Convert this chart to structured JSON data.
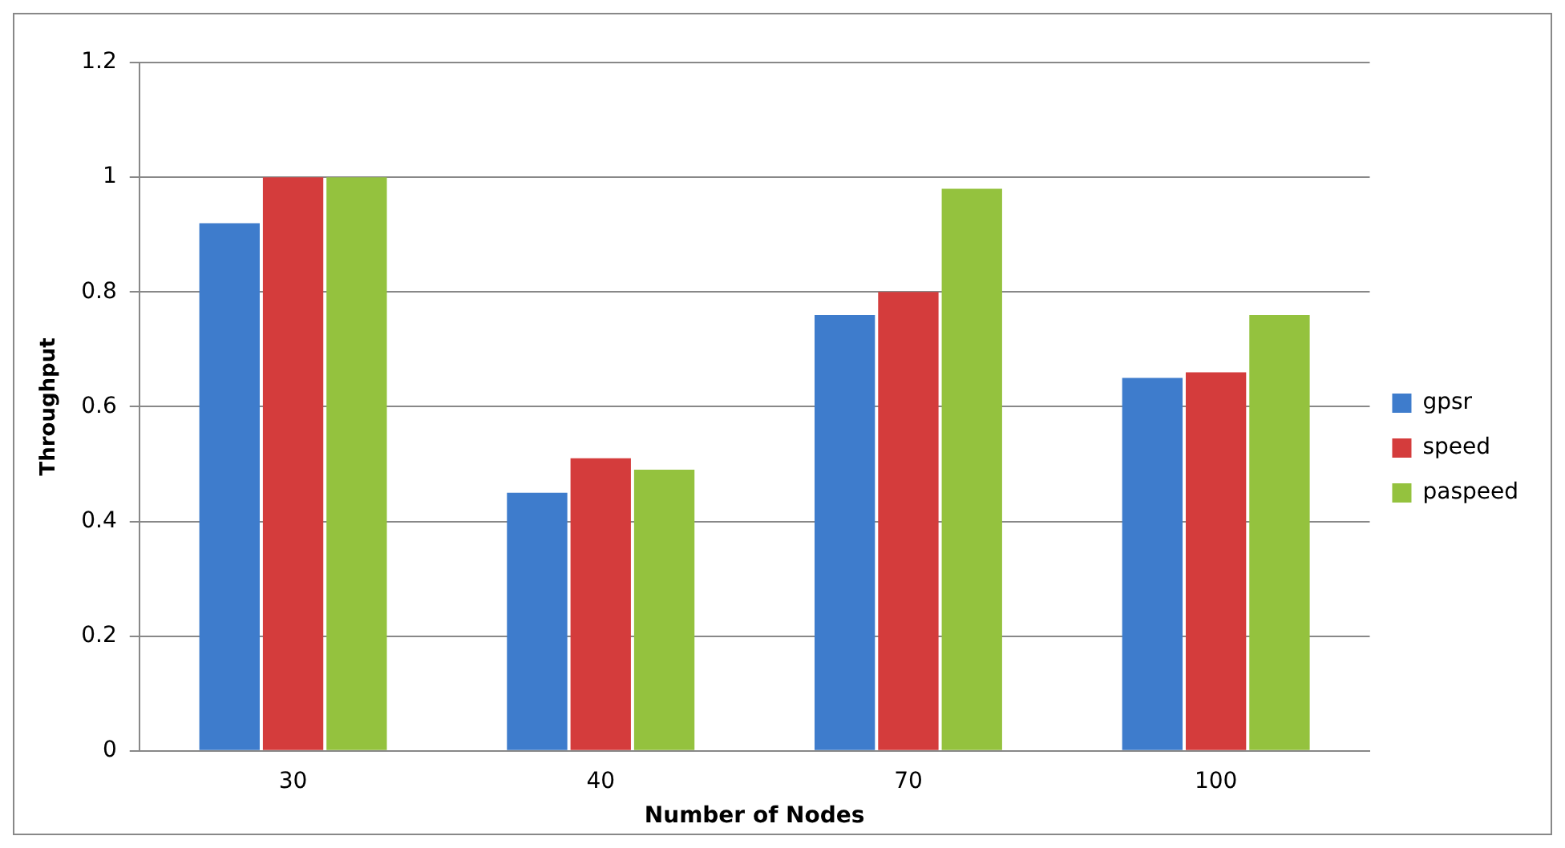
{
  "chart_data": {
    "type": "bar",
    "xlabel": "Number of Nodes",
    "ylabel": "Throughput",
    "categories": [
      "30",
      "40",
      "70",
      "100"
    ],
    "series": [
      {
        "name": "gpsr",
        "color": "#3e7ccc",
        "values": [
          0.92,
          0.45,
          0.76,
          0.65
        ]
      },
      {
        "name": "speed",
        "color": "#d43c3c",
        "values": [
          1.0,
          0.51,
          0.8,
          0.66
        ]
      },
      {
        "name": "paspeed",
        "color": "#94c23e",
        "values": [
          1.0,
          0.49,
          0.98,
          0.76
        ]
      }
    ],
    "ylim": [
      0,
      1.2
    ],
    "yticks": [
      0,
      0.2,
      0.4,
      0.6,
      0.8,
      1,
      1.2
    ],
    "grid": "y",
    "legend": "right"
  }
}
